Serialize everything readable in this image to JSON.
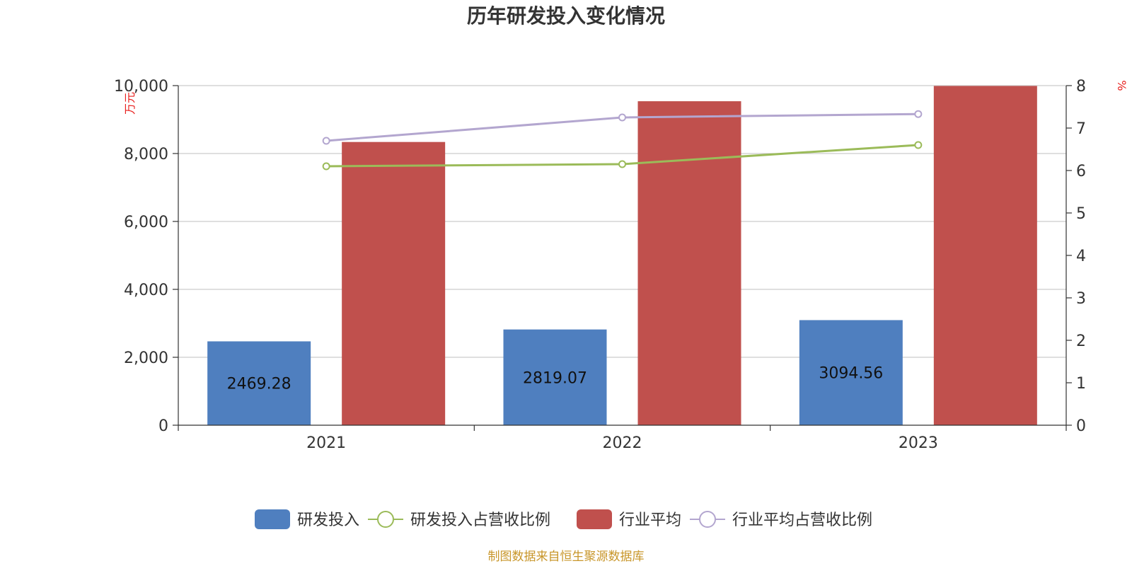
{
  "chart_data": {
    "type": "bar",
    "title": "历年研发投入变化情况",
    "categories": [
      "2021",
      "2022",
      "2023"
    ],
    "y_left": {
      "unit": "万元",
      "ylim": [
        0,
        10000
      ],
      "ticks": [
        "0",
        "2,000",
        "4,000",
        "6,000",
        "8,000",
        "10,000"
      ],
      "tick_values": [
        0,
        2000,
        4000,
        6000,
        8000,
        10000
      ]
    },
    "y_right": {
      "unit": "%",
      "ylim": [
        0,
        8
      ],
      "ticks": [
        "0",
        "1",
        "2",
        "3",
        "4",
        "5",
        "6",
        "7",
        "8"
      ],
      "tick_values": [
        0,
        1,
        2,
        3,
        4,
        5,
        6,
        7,
        8
      ]
    },
    "series": [
      {
        "name": "研发投入",
        "type": "bar",
        "axis": "left",
        "color": "#4f7fbf",
        "values": [
          2469.28,
          2819.07,
          3094.56
        ],
        "labels": [
          "2469.28",
          "2819.07",
          "3094.56"
        ]
      },
      {
        "name": "行业平均",
        "type": "bar",
        "axis": "left",
        "color": "#c0504d",
        "values": [
          8340,
          9540,
          9990
        ]
      },
      {
        "name": "研发投入占营收比例",
        "type": "line",
        "axis": "right",
        "color": "#9bbb59",
        "values": [
          6.1,
          6.15,
          6.6
        ]
      },
      {
        "name": "行业平均占营收比例",
        "type": "line",
        "axis": "right",
        "color": "#b3a6cf",
        "values": [
          6.7,
          7.25,
          7.33
        ]
      }
    ],
    "legend": {
      "position": "bottom",
      "order": [
        "研发投入",
        "研发投入占营收比例",
        "行业平均",
        "行业平均占营收比例"
      ]
    },
    "grid": true
  },
  "footer": {
    "source": "制图数据来自恒生聚源数据库"
  }
}
